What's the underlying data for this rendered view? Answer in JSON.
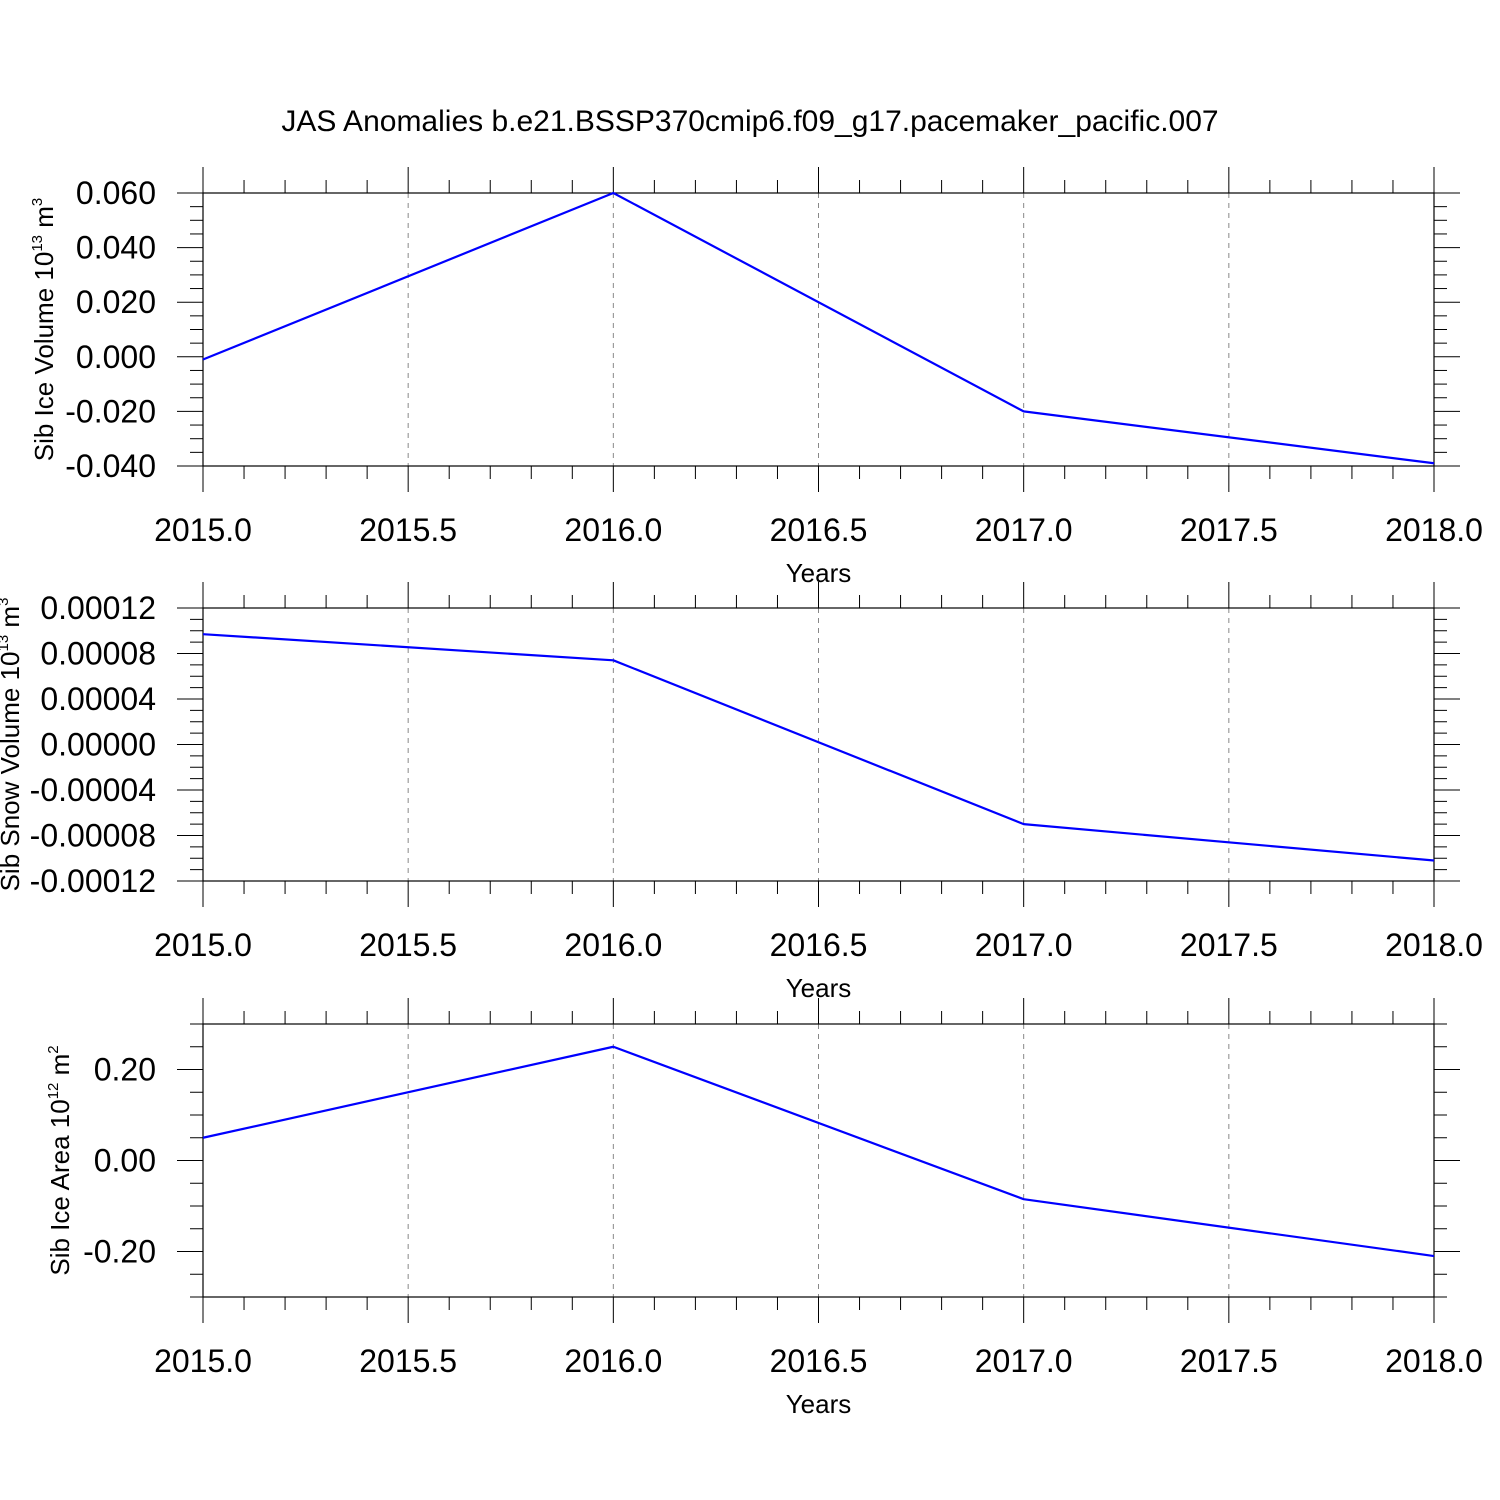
{
  "title": "JAS Anomalies b.e21.BSSP370cmip6.f09_g17.pacemaker_pacific.007",
  "colors": {
    "line": "#0000ff",
    "axes": "#000000",
    "grid": "#888888"
  },
  "chart_data": [
    {
      "type": "line",
      "x": [
        2015,
        2016,
        2017,
        2018
      ],
      "series": [
        {
          "values": [
            -0.001,
            0.06,
            -0.02,
            -0.039
          ]
        }
      ],
      "xlabel": "Years",
      "ylabel": {
        "text": "Sib Ice Volume 10",
        "sup": "13",
        "unit": " m",
        "unit_sup": "3"
      },
      "xlim": [
        2015,
        2018
      ],
      "ylim": [
        -0.04,
        0.06
      ],
      "xticks": [
        "2015.0",
        "2015.5",
        "2016.0",
        "2016.5",
        "2017.0",
        "2017.5",
        "2018.0"
      ],
      "yticks": [
        "-0.040",
        "-0.020",
        "0.000",
        "0.020",
        "0.040",
        "0.060"
      ],
      "grid": "vertical dashed"
    },
    {
      "type": "line",
      "x": [
        2015,
        2016,
        2017,
        2018
      ],
      "series": [
        {
          "values": [
            9.7e-05,
            7.4e-05,
            -7e-05,
            -0.000102
          ]
        }
      ],
      "xlabel": "Years",
      "ylabel": {
        "text": "Sib Snow Volume 10",
        "sup": "13",
        "unit": " m",
        "unit_sup": "3"
      },
      "xlim": [
        2015,
        2018
      ],
      "ylim": [
        -0.00012,
        0.00012
      ],
      "xticks": [
        "2015.0",
        "2015.5",
        "2016.0",
        "2016.5",
        "2017.0",
        "2017.5",
        "2018.0"
      ],
      "yticks": [
        "-0.00012",
        "-0.00008",
        "-0.00004",
        "0.00000",
        "0.00004",
        "0.00008",
        "0.00012"
      ],
      "grid": "vertical dashed"
    },
    {
      "type": "line",
      "x": [
        2015,
        2016,
        2017,
        2018
      ],
      "series": [
        {
          "values": [
            0.05,
            0.25,
            -0.085,
            -0.21
          ]
        }
      ],
      "xlabel": "Years",
      "ylabel": {
        "text": "Sib Ice Area 10",
        "sup": "12",
        "unit": " m",
        "unit_sup": "2"
      },
      "xlim": [
        2015,
        2018
      ],
      "ylim": [
        -0.3,
        0.3
      ],
      "xticks": [
        "2015.0",
        "2015.5",
        "2016.0",
        "2016.5",
        "2017.0",
        "2017.5",
        "2018.0"
      ],
      "yticks": [
        "-0.20",
        "0.00",
        "0.20"
      ],
      "grid": "vertical dashed"
    }
  ]
}
